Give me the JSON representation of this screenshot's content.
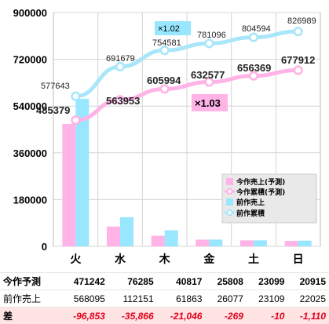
{
  "chart_data": {
    "type": "bar",
    "categories": [
      "火",
      "水",
      "木",
      "金",
      "土",
      "日"
    ],
    "ylim": [
      0,
      900000
    ],
    "yticks": [
      0,
      180000,
      360000,
      540000,
      720000,
      900000
    ],
    "grid": true,
    "legend_position": "right",
    "series": [
      {
        "name": "今作売上(予測)",
        "kind": "bar",
        "color": "#ffb3e6",
        "values": [
          471242,
          76285,
          40817,
          25808,
          23099,
          20915
        ]
      },
      {
        "name": "前作売上",
        "kind": "bar",
        "color": "#99e6ff",
        "values": [
          568095,
          112151,
          61863,
          26077,
          23109,
          22025
        ]
      },
      {
        "name": "今作累積(予測)",
        "kind": "line",
        "color": "#ffb3e6",
        "values": [
          485379,
          563953,
          605994,
          632577,
          656369,
          677912
        ]
      },
      {
        "name": "前作累積",
        "kind": "line",
        "color": "#a9e6fa",
        "values": [
          577643,
          691679,
          754581,
          781096,
          804594,
          826989
        ]
      }
    ],
    "annotations": [
      {
        "text": "×1.02",
        "color": "#99e6ff"
      },
      {
        "text": "×1.03",
        "color": "#ffb3e6"
      }
    ]
  },
  "labels": {
    "cum_this": [
      "485379",
      "563953",
      "605994",
      "632577",
      "656369",
      "677912"
    ],
    "cum_prev": [
      "577643",
      "691679",
      "754581",
      "781096",
      "804594",
      "826989"
    ]
  },
  "table": {
    "rows": [
      {
        "key": "this",
        "header": "今作予測",
        "cells": [
          "471242",
          "76285",
          "40817",
          "25808",
          "23099",
          "20915"
        ]
      },
      {
        "key": "prev",
        "header": "前作売上",
        "cells": [
          "568095",
          "112151",
          "61863",
          "26077",
          "23109",
          "22025"
        ]
      },
      {
        "key": "diff",
        "header": "差",
        "cells": [
          "-96,853",
          "-35,866",
          "-21,046",
          "-269",
          "-10",
          "-1,110"
        ]
      }
    ]
  }
}
